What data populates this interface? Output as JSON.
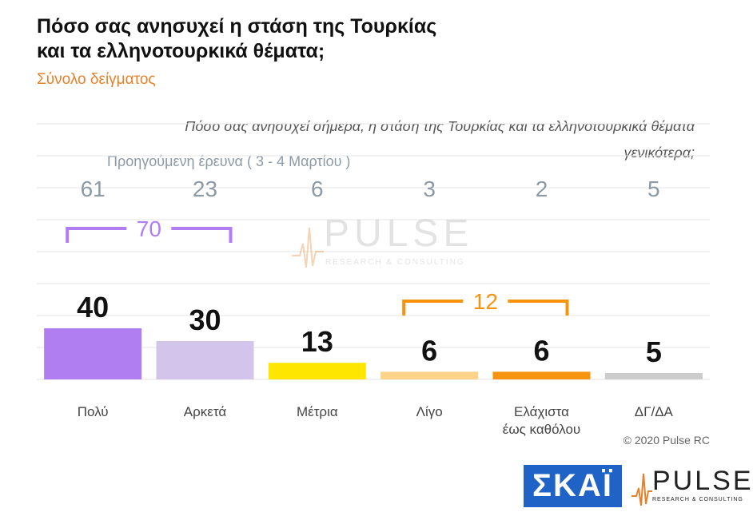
{
  "title_line1": "Πόσο σας ανησυχεί η στάση της Τουρκίας",
  "title_line2": "και τα ελληνοτουρκικά θέματα;",
  "subtitle": "Σύνολο δείγματος",
  "question_line1": "Πόσο σας ανησυχεί σήμερα, η στάση της Τουρκίας και τα ελληνοτουρκικά θέματα",
  "question_line2": "γενικότερα;",
  "previous_survey_label": "Προηγούμενη έρευνα   ( 3 - 4 Μαρτίου )",
  "watermark": {
    "text": "PULSE",
    "sub": "RESEARCH & CONSULTING"
  },
  "copyright": "© 2020 Pulse RC",
  "logos": {
    "skai": "ΣΚΑΪ",
    "pulse": "PULSE",
    "pulse_sub": "RESEARCH & CONSULTING"
  },
  "chart_data": {
    "type": "bar",
    "categories": [
      "Πολύ",
      "Αρκετά",
      "Μέτρια",
      "Λίγο",
      "Ελάχιστα έως καθόλου",
      "ΔΓ/ΔΑ"
    ],
    "category_lines": [
      [
        "Πολύ"
      ],
      [
        "Αρκετά"
      ],
      [
        "Μέτρια"
      ],
      [
        "Λίγο"
      ],
      [
        "Ελάχιστα",
        "έως καθόλου"
      ],
      [
        "ΔΓ/ΔΑ"
      ]
    ],
    "values": [
      40,
      30,
      13,
      6,
      6,
      5
    ],
    "previous_values": [
      61,
      23,
      6,
      3,
      2,
      5
    ],
    "colors": [
      "#b07ef0",
      "#d2c4ea",
      "#ffe600",
      "#fdd38a",
      "#f7930e",
      "#cccccc"
    ],
    "brackets": [
      {
        "from": 0,
        "to": 1,
        "label": "70",
        "color": "#b07ef0"
      },
      {
        "from": 3,
        "to": 4,
        "label": "12",
        "color": "#f7930e"
      }
    ],
    "ylim": [
      0,
      100
    ],
    "grid": true
  }
}
